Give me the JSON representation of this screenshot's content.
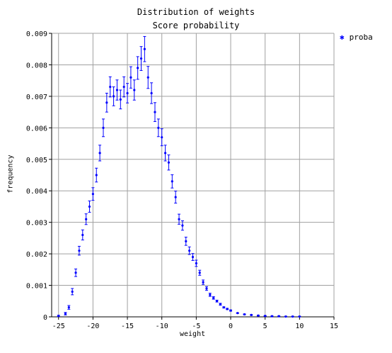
{
  "chart_data": {
    "type": "scatter",
    "title": "Distribution of weights",
    "subtitle": "Score probability",
    "xlabel": "weight",
    "ylabel": "frequency",
    "xlim": [
      -26,
      15
    ],
    "ylim": [
      0,
      0.009
    ],
    "xticks": [
      -25,
      -20,
      -15,
      -10,
      -5,
      0,
      5,
      10,
      15
    ],
    "yticks": [
      0,
      0.001,
      0.002,
      0.003,
      0.004,
      0.005,
      0.006,
      0.007,
      0.008,
      0.009
    ],
    "ytick_labels": [
      "0",
      "0.001",
      "0.002",
      "0.003",
      "0.004",
      "0.005",
      "0.006",
      "0.007",
      "0.008",
      "0.009"
    ],
    "grid": true,
    "legend_position": "top-right",
    "series": [
      {
        "name": "proba",
        "color": "#0000ff",
        "marker": "star",
        "error_bars": true,
        "x": [
          -25,
          -24,
          -23.5,
          -23,
          -22.5,
          -22,
          -21.5,
          -21,
          -20.5,
          -20,
          -19.5,
          -19,
          -18.5,
          -18,
          -17.5,
          -17,
          -16.5,
          -16,
          -15.5,
          -15,
          -14.5,
          -14,
          -13.5,
          -13,
          -12.5,
          -12,
          -11.5,
          -11,
          -10.5,
          -10,
          -9.5,
          -9,
          -8.5,
          -8,
          -7.5,
          -7,
          -6.5,
          -6,
          -5.5,
          -5,
          -4.5,
          -4,
          -3.5,
          -3,
          -2.5,
          -2,
          -1.5,
          -1,
          -0.5,
          0,
          1,
          2,
          3,
          4,
          5,
          6,
          7,
          8,
          9,
          10
        ],
        "y": [
          3e-05,
          0.0001,
          0.0003,
          0.0008,
          0.0014,
          0.0021,
          0.0026,
          0.0031,
          0.0035,
          0.0039,
          0.0045,
          0.0052,
          0.006,
          0.0068,
          0.0073,
          0.007,
          0.0072,
          0.0069,
          0.0073,
          0.0071,
          0.0076,
          0.0072,
          0.0079,
          0.0082,
          0.0085,
          0.0076,
          0.0071,
          0.0065,
          0.006,
          0.0057,
          0.0052,
          0.0049,
          0.0043,
          0.0038,
          0.0031,
          0.0029,
          0.0024,
          0.0021,
          0.0019,
          0.0017,
          0.0014,
          0.0011,
          0.0009,
          0.0007,
          0.0006,
          0.0005,
          0.0004,
          0.0003,
          0.00025,
          0.0002,
          0.00012,
          8e-05,
          6e-05,
          4e-05,
          3e-05,
          2e-05,
          2e-05,
          1e-05,
          1e-05,
          1e-05
        ],
        "err": [
          2e-05,
          4e-05,
          6e-05,
          0.0001,
          0.00012,
          0.00014,
          0.00016,
          0.00017,
          0.00018,
          0.0002,
          0.00022,
          0.00025,
          0.00028,
          0.0003,
          0.00032,
          0.0003,
          0.00032,
          0.0003,
          0.00032,
          0.00031,
          0.00034,
          0.00032,
          0.00036,
          0.00038,
          0.0004,
          0.00035,
          0.00033,
          0.0003,
          0.00028,
          0.00027,
          0.00025,
          0.00024,
          0.00021,
          0.00019,
          0.00016,
          0.00015,
          0.00013,
          0.00012,
          0.00011,
          0.0001,
          8e-05,
          7e-05,
          6e-05,
          5e-05,
          4e-05,
          3e-05,
          3e-05,
          2e-05,
          2e-05,
          2e-05,
          1e-05,
          1e-05,
          1e-05,
          1e-05,
          1e-05,
          1e-05,
          1e-05,
          1e-05,
          1e-05,
          1e-05
        ]
      }
    ]
  }
}
